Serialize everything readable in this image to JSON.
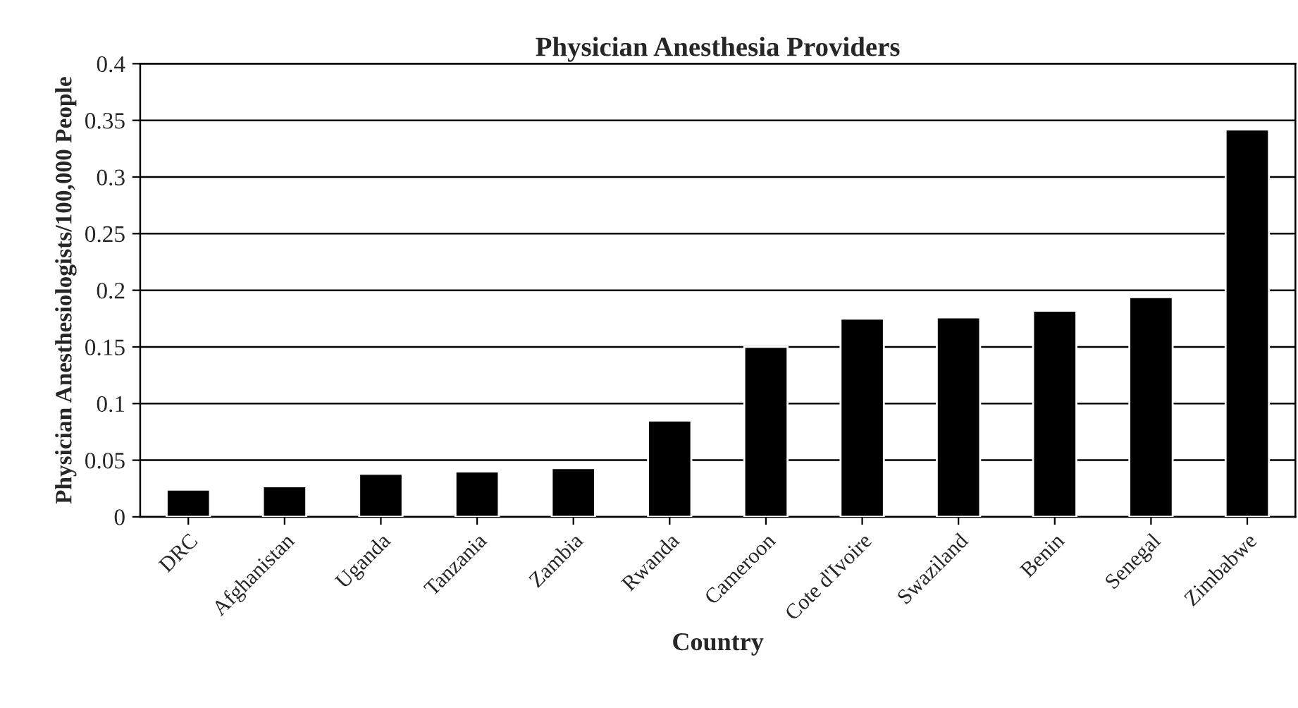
{
  "chart_data": {
    "type": "bar",
    "title": "Physician Anesthesia Providers",
    "xlabel": "Country",
    "ylabel": "Physician Anesthesiologists/100,000 People",
    "categories": [
      "DRC",
      "Afghanistan",
      "Uganda",
      "Tanzania",
      "Zambia",
      "Rwanda",
      "Cameroon",
      "Cote d'Ivoire",
      "Swaziland",
      "Benin",
      "Senegal",
      "Zimbabwe"
    ],
    "values": [
      0.024,
      0.027,
      0.038,
      0.04,
      0.043,
      0.085,
      0.15,
      0.175,
      0.176,
      0.182,
      0.194,
      0.342
    ],
    "color": "#000000",
    "ylim": [
      0,
      0.4
    ],
    "yticks": [
      0,
      0.05,
      0.1,
      0.15,
      0.2,
      0.25,
      0.3,
      0.35,
      0.4
    ],
    "grid": "y"
  }
}
